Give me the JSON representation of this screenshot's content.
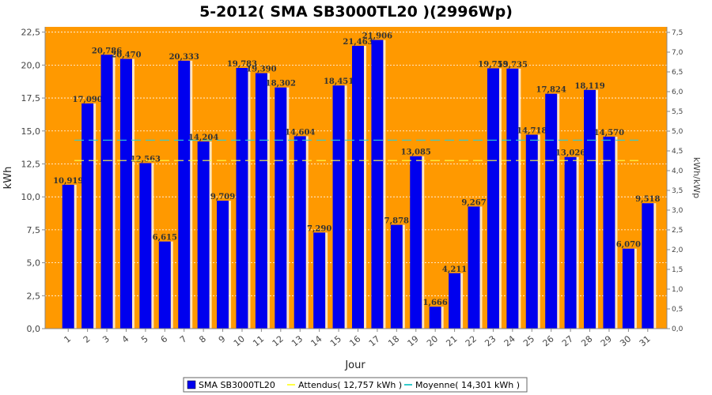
{
  "chart_data": {
    "type": "bar",
    "title": "5-2012( SMA SB3000TL20 )(2996Wp)",
    "xlabel": "Jour",
    "ylabel": "kWh",
    "y2label": "kWh/kWp",
    "categories": [
      "1",
      "2",
      "3",
      "4",
      "5",
      "6",
      "7",
      "8",
      "9",
      "10",
      "11",
      "12",
      "13",
      "14",
      "15",
      "16",
      "17",
      "18",
      "19",
      "20",
      "21",
      "22",
      "23",
      "24",
      "25",
      "26",
      "27",
      "28",
      "29",
      "30",
      "31"
    ],
    "series": [
      {
        "name": "SMA SB3000TL20",
        "values": [
          10.919,
          17.09,
          20.786,
          20.47,
          12.563,
          6.615,
          20.333,
          14.204,
          9.709,
          19.783,
          19.39,
          18.302,
          14.604,
          7.29,
          18.451,
          21.463,
          21.906,
          7.878,
          13.085,
          1.666,
          4.211,
          9.267,
          19.753,
          19.735,
          14.718,
          17.824,
          13.026,
          18.119,
          14.57,
          6.07,
          9.518
        ],
        "labels": [
          "10,919",
          "17,090",
          "20,786",
          "20,470",
          "12,563",
          "6,615",
          "20,333",
          "14,204",
          "9,709",
          "19,783",
          "19,390",
          "18,302",
          "14,604",
          "7,290",
          "18,451",
          "21,463",
          "21,906",
          "7,878",
          "13,085",
          "1,666",
          "4,211",
          "9,267",
          "19,753",
          "19,735",
          "14,718",
          "17,824",
          "13,026",
          "18,119",
          "14,570",
          "6,070",
          "9,518"
        ],
        "color": "#0000ee"
      }
    ],
    "reference_lines": [
      {
        "name": "Attendus( 12,757 kWh )",
        "value": 12.757,
        "color": "#ffff44"
      },
      {
        "name": "Moyenne( 14,301 kWh )",
        "value": 14.301,
        "color": "#33cccc"
      }
    ],
    "ylim": [
      0,
      22.9
    ],
    "yticks": [
      "0,0",
      "2,5",
      "5,0",
      "7,5",
      "10,0",
      "12,5",
      "15,0",
      "17,5",
      "20,0",
      "22,5"
    ],
    "y2lim": [
      0,
      7.64
    ],
    "y2ticks": [
      "0,0",
      "0,5",
      "1,0",
      "1,5",
      "2,0",
      "2,5",
      "3,0",
      "3,5",
      "4,0",
      "4,5",
      "5,0",
      "5,5",
      "6,0",
      "6,5",
      "7,0",
      "7,5"
    ],
    "grid": true,
    "plot_background": "#ff9900",
    "legend_position": "bottom"
  }
}
